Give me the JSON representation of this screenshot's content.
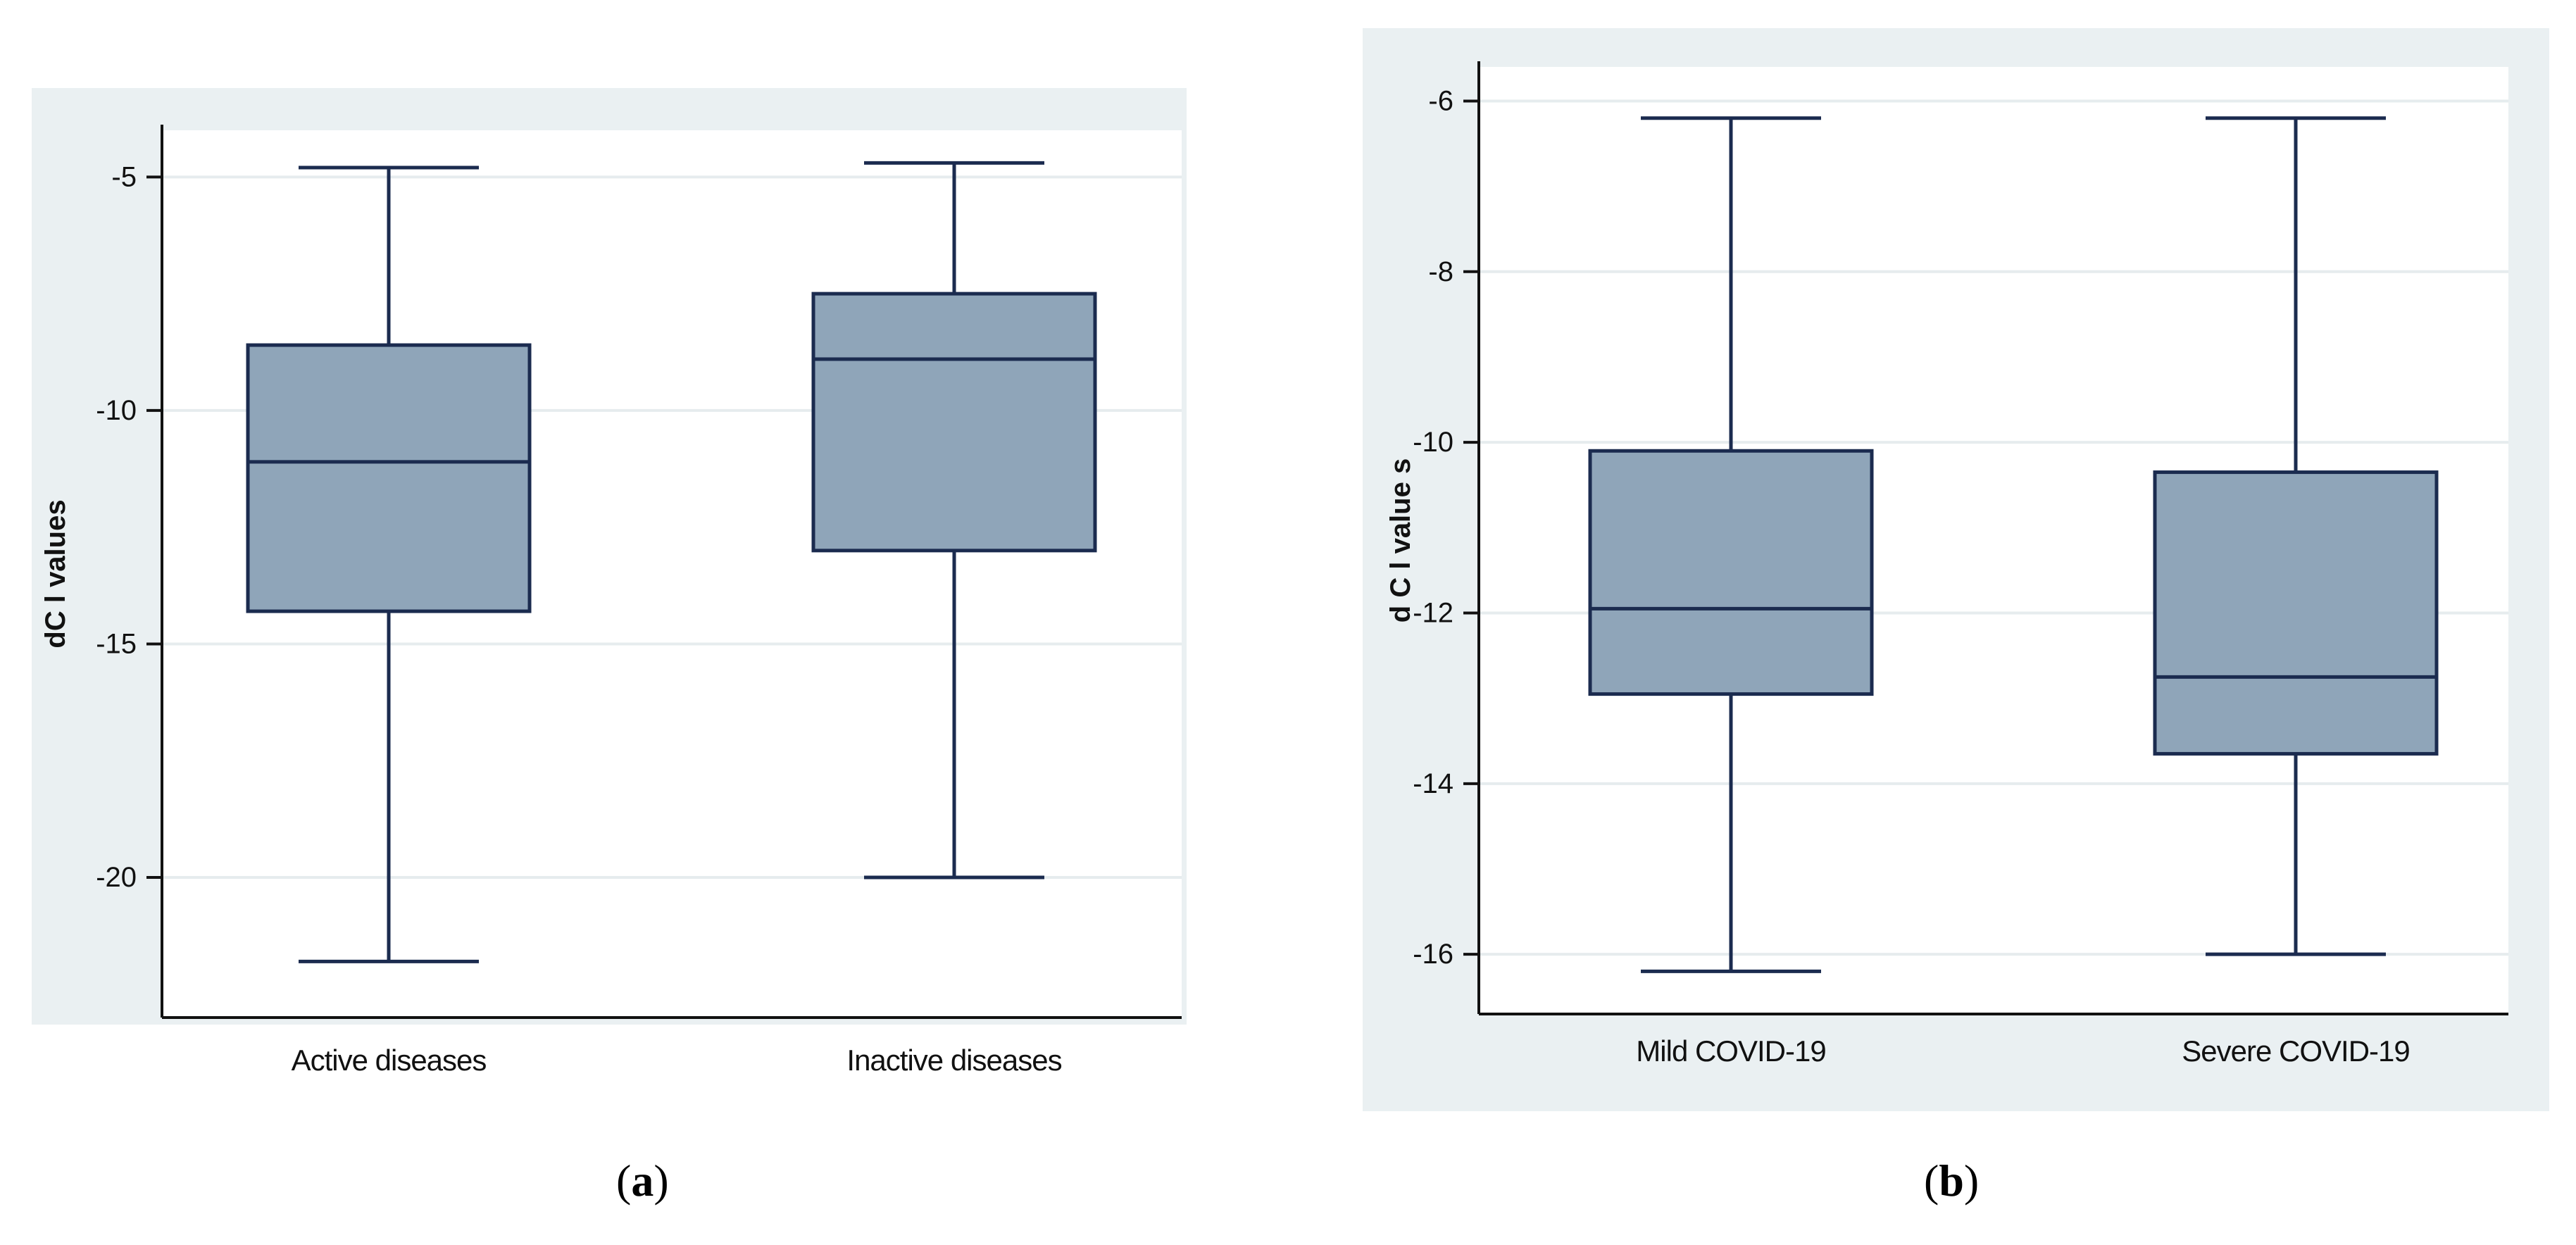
{
  "colors": {
    "panel_bg": "#eaf0f2",
    "plot_bg": "#ffffff",
    "grid": "#e6ecee",
    "box_fill": "#8fa5b9",
    "line": "#1b2b4f"
  },
  "chart_data": [
    {
      "type": "box",
      "panel_label": "a",
      "ylabel": "dC l values",
      "yticks": [
        -5,
        -10,
        -15,
        -20
      ],
      "ylim": [
        -23,
        -4
      ],
      "categories": [
        "Active diseases",
        "Inactive diseases"
      ],
      "boxes": [
        {
          "name": "Active diseases",
          "whisker_high": -4.8,
          "q3": -8.6,
          "median": -11.1,
          "q1": -14.3,
          "whisker_low": -21.8
        },
        {
          "name": "Inactive diseases",
          "whisker_high": -4.7,
          "q3": -7.5,
          "median": -8.9,
          "q1": -13.0,
          "whisker_low": -20.0
        }
      ]
    },
    {
      "type": "box",
      "panel_label": "b",
      "ylabel": "d C l value s",
      "yticks": [
        -6,
        -8,
        -10,
        -12,
        -14,
        -16
      ],
      "ylim": [
        -16.7,
        -5.6
      ],
      "categories": [
        "Mild COVID-19",
        "Severe COVID-19"
      ],
      "boxes": [
        {
          "name": "Mild COVID-19",
          "whisker_high": -6.2,
          "q3": -10.1,
          "median": -11.95,
          "q1": -12.95,
          "whisker_low": -16.2
        },
        {
          "name": "Severe COVID-19",
          "whisker_high": -6.2,
          "q3": -10.35,
          "median": -12.75,
          "q1": -13.65,
          "whisker_low": -16.0
        }
      ]
    }
  ]
}
